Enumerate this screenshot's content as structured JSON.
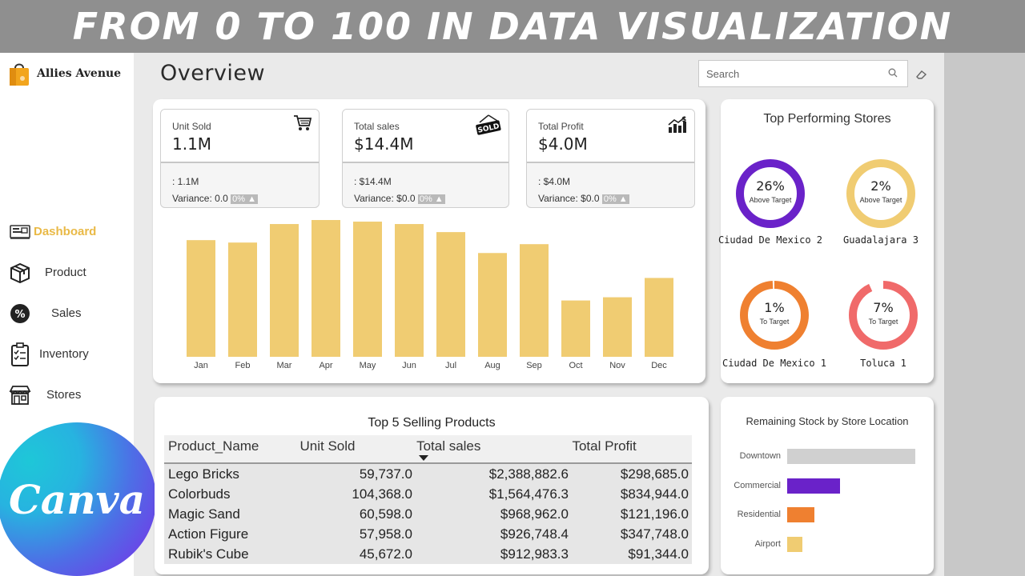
{
  "banner": {
    "text": "FROM 0 TO 100 IN DATA VISUALIZATION"
  },
  "brand": {
    "name": "Allies Avenue"
  },
  "nav": [
    {
      "label": "Dashboard",
      "icon": "dashboard-icon",
      "active": true
    },
    {
      "label": "Product",
      "icon": "box-icon",
      "active": false
    },
    {
      "label": "Sales",
      "icon": "percent-icon",
      "active": false
    },
    {
      "label": "Inventory",
      "icon": "clipboard-icon",
      "active": false
    },
    {
      "label": "Stores",
      "icon": "storefront-icon",
      "active": false
    }
  ],
  "canva": {
    "text": "Canva"
  },
  "page": {
    "title": "Overview"
  },
  "search": {
    "placeholder": "Search"
  },
  "kpis": [
    {
      "label": "Unit Sold",
      "value": "1.1M",
      "sub": ": 1.1M",
      "variance": "Variance: 0.0",
      "pct": "0%",
      "icon": "cart-icon"
    },
    {
      "label": "Total sales",
      "value": "$14.4M",
      "sub": ": $14.4M",
      "variance": "Variance: $0.0",
      "pct": "0%",
      "icon": "sold-sign-icon"
    },
    {
      "label": "Total Profit",
      "value": "$4.0M",
      "sub": ": $4.0M",
      "variance": "Variance: $0.0",
      "pct": "0%",
      "icon": "profit-chart-icon"
    }
  ],
  "chart_data": {
    "type": "bar",
    "categories": [
      "Jan",
      "Feb",
      "Mar",
      "Apr",
      "May",
      "Jun",
      "Jul",
      "Aug",
      "Sep",
      "Oct",
      "Nov",
      "Dec"
    ],
    "values": [
      145,
      142,
      165,
      170,
      168,
      165,
      155,
      129,
      140,
      70,
      74,
      98
    ],
    "ylim": [
      0,
      175
    ],
    "color": "#f0cc72",
    "title": "",
    "xlabel": "",
    "ylabel": ""
  },
  "stores": {
    "title": "Top Performing Stores",
    "items": [
      {
        "pct": "26%",
        "fraction": 1.0,
        "sub": "Above Target",
        "name": "Ciudad De Mexico 2",
        "color": "#6a22c9"
      },
      {
        "pct": "2%",
        "fraction": 1.0,
        "sub": "Above Target",
        "name": "Guadalajara 3",
        "color": "#f0cc72"
      },
      {
        "pct": "1%",
        "fraction": 0.99,
        "sub": "To Target",
        "name": "Ciudad De Mexico 1",
        "color": "#ef8030"
      },
      {
        "pct": "7%",
        "fraction": 0.93,
        "sub": "To Target",
        "name": "Toluca 1",
        "color": "#f06a6a"
      }
    ]
  },
  "table": {
    "title": "Top 5 Selling Products",
    "headers": [
      "Product_Name",
      "Unit Sold",
      "Total sales",
      "Total Profit"
    ],
    "rows": [
      [
        "Lego Bricks",
        "59,737.0",
        "$2,388,882.6",
        "$298,685.0"
      ],
      [
        "Colorbuds",
        "104,368.0",
        "$1,564,476.3",
        "$834,944.0"
      ],
      [
        "Magic Sand",
        "60,598.0",
        "$968,962.0",
        "$121,196.0"
      ],
      [
        "Action Figure",
        "57,958.0",
        "$926,748.4",
        "$347,748.0"
      ],
      [
        "Rubik's Cube",
        "45,672.0",
        "$912,983.3",
        "$91,344.0"
      ]
    ]
  },
  "stock": {
    "title": "Remaining Stock by Store Location",
    "items": [
      {
        "label": "Downtown",
        "value": 100,
        "color": "#d0d0d0"
      },
      {
        "label": "Commercial",
        "value": 41,
        "color": "#6a22c9"
      },
      {
        "label": "Residential",
        "value": 21,
        "color": "#ef8030"
      },
      {
        "label": "Airport",
        "value": 12,
        "color": "#f0cc72"
      }
    ]
  }
}
